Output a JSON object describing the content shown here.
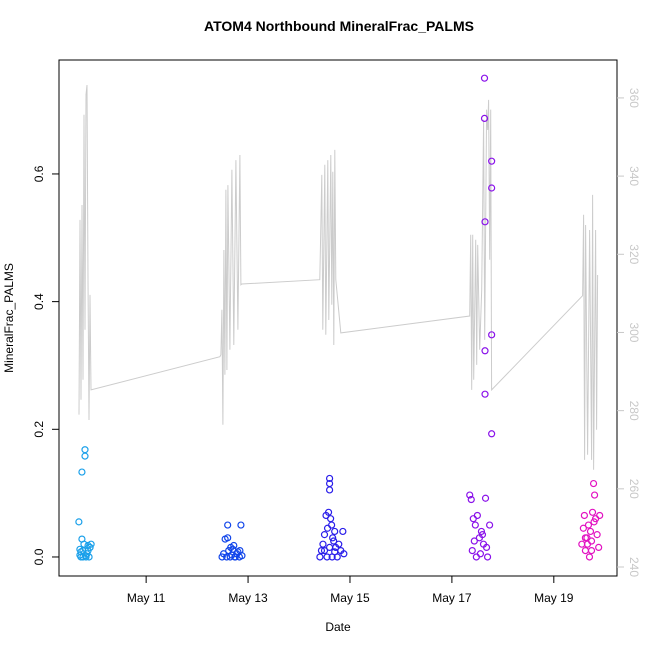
{
  "chart_data": {
    "type": "scatter",
    "title": "ATOM4 Northbound MineralFrac_PALMS",
    "x_label": "Date",
    "y_label": "MineralFrac_PALMS",
    "xlim": [
      9.29,
      20.24
    ],
    "xticks": [
      {
        "value": 11,
        "label": "May 11"
      },
      {
        "value": 13,
        "label": "May 13"
      },
      {
        "value": 15,
        "label": "May 15"
      },
      {
        "value": 17,
        "label": "May 17"
      },
      {
        "value": 19,
        "label": "May 19"
      }
    ],
    "ylim": [
      -0.0298,
      0.7785
    ],
    "yticks": [
      {
        "value": 0,
        "label": "0.0"
      },
      0.2,
      0.4,
      0.6
    ],
    "y2lim": [
      237.7,
      369.7
    ],
    "y2ticks": [
      240,
      260,
      280,
      300,
      320,
      340,
      360
    ],
    "y2_color": "#c8c8c8",
    "series": [
      {
        "type": "line",
        "axis": "y2",
        "color": "#cccccc",
        "x": [
          9.682,
          9.702,
          9.721,
          9.741,
          9.761,
          9.78,
          9.8,
          9.819,
          9.839,
          9.859,
          9.878,
          9.898,
          9.918,
          12.447,
          12.467,
          12.486,
          12.506,
          12.525,
          12.545,
          12.565,
          12.584,
          12.604,
          12.643,
          12.682,
          12.721,
          12.761,
          12.8,
          12.839,
          12.859,
          12.878,
          14.408,
          14.447,
          14.467,
          14.506,
          14.525,
          14.565,
          14.584,
          14.624,
          14.643,
          14.663,
          14.682,
          14.702,
          14.721,
          14.82,
          17.349,
          17.369,
          17.388,
          17.408,
          17.427,
          17.467,
          17.486,
          17.506,
          17.545,
          17.584,
          17.623,
          17.643,
          17.682,
          17.702,
          17.721,
          17.741,
          17.761,
          17.78,
          19.565,
          19.584,
          19.604,
          19.624,
          19.663,
          19.702,
          19.741,
          19.761,
          19.78,
          19.82,
          19.839,
          19.859
        ],
        "values": [
          279.0,
          328.8,
          282.8,
          332.6,
          287.9,
          355.7,
          300.7,
          360.8,
          363.3,
          313.5,
          277.6,
          309.6,
          285.3,
          293.8,
          294.3,
          305.8,
          276.4,
          321.1,
          289.2,
          336.5,
          290.4,
          337.7,
          295.6,
          341.6,
          296.8,
          344.1,
          300.7,
          345.4,
          312.2,
          312.4,
          313.5,
          340.3,
          300.7,
          342.9,
          299.4,
          344.1,
          303.2,
          345.4,
          307.1,
          341.1,
          296.8,
          346.7,
          313.5,
          299.9,
          304.2,
          325.0,
          285.3,
          325.0,
          287.9,
          323.7,
          291.7,
          322.4,
          295.6,
          310.9,
          354.4,
          298.1,
          357.0,
          351.8,
          359.5,
          318.6,
          357.0,
          285.3,
          309.4,
          330.1,
          267.4,
          327.5,
          268.7,
          326.2,
          267.4,
          335.2,
          264.9,
          326.2,
          275.1,
          314.7
        ]
      },
      {
        "type": "points",
        "color": "#1aa0ea",
        "x": [
          9.68,
          9.7,
          9.72,
          9.74,
          9.76,
          9.78,
          9.8,
          9.82,
          9.84,
          9.86,
          9.88,
          9.9,
          9.74,
          9.8,
          9.81,
          9.72,
          9.76,
          9.86,
          9.92,
          9.7
        ],
        "values": [
          0.055,
          0.003,
          0.0,
          0.133,
          0.01,
          0.02,
          0.168,
          0.0,
          0.005,
          0.018,
          0.0,
          0.015,
          0.028,
          0.158,
          0.002,
          0.008,
          0.0,
          0.01,
          0.02,
          0.012
        ]
      },
      {
        "type": "points",
        "color": "#1246ea",
        "x": [
          12.49,
          12.52,
          12.55,
          12.58,
          12.6,
          12.62,
          12.65,
          12.68,
          12.7,
          12.72,
          12.75,
          12.78,
          12.8,
          12.83,
          12.86,
          12.88,
          12.6,
          12.66,
          12.74,
          12.84
        ],
        "values": [
          0.0,
          0.005,
          0.028,
          0.0,
          0.05,
          0.01,
          0.0,
          0.003,
          0.012,
          0.018,
          0.0,
          0.005,
          0.008,
          0.0,
          0.05,
          0.002,
          0.03,
          0.015,
          0.0,
          0.01
        ]
      },
      {
        "type": "points",
        "color": "#2a1eea",
        "x": [
          14.41,
          14.44,
          14.47,
          14.5,
          14.53,
          14.56,
          14.58,
          14.6,
          14.6,
          14.6,
          14.62,
          14.64,
          14.66,
          14.68,
          14.7,
          14.72,
          14.75,
          14.78,
          14.82,
          14.86,
          14.88,
          14.55,
          14.65,
          14.5,
          14.7,
          14.6
        ],
        "values": [
          0.0,
          0.01,
          0.02,
          0.035,
          0.065,
          0.045,
          0.07,
          0.123,
          0.115,
          0.105,
          0.06,
          0.05,
          0.03,
          0.025,
          0.04,
          0.015,
          0.0,
          0.02,
          0.01,
          0.04,
          0.005,
          0.0,
          0.0,
          0.01,
          0.008,
          0.015
        ]
      },
      {
        "type": "points",
        "color": "#8a12ea",
        "x": [
          17.64,
          17.64,
          17.78,
          17.78,
          17.65,
          17.78,
          17.65,
          17.65,
          17.78,
          17.35,
          17.38,
          17.42,
          17.46,
          17.5,
          17.54,
          17.58,
          17.62,
          17.66,
          17.7,
          17.74,
          17.4,
          17.48,
          17.56,
          17.68,
          17.6,
          17.44
        ],
        "values": [
          0.75,
          0.687,
          0.62,
          0.578,
          0.525,
          0.348,
          0.323,
          0.255,
          0.193,
          0.097,
          0.09,
          0.06,
          0.05,
          0.065,
          0.03,
          0.04,
          0.02,
          0.092,
          0.0,
          0.05,
          0.01,
          0.0,
          0.005,
          0.015,
          0.035,
          0.025
        ]
      },
      {
        "type": "points",
        "color": "#e212c2",
        "x": [
          19.55,
          19.58,
          19.6,
          19.62,
          19.65,
          19.68,
          19.7,
          19.72,
          19.74,
          19.76,
          19.78,
          19.8,
          19.82,
          19.85,
          19.88,
          19.9,
          19.66,
          19.74,
          19.79,
          19.62
        ],
        "values": [
          0.02,
          0.045,
          0.065,
          0.01,
          0.03,
          0.05,
          0.0,
          0.04,
          0.025,
          0.07,
          0.115,
          0.097,
          0.06,
          0.035,
          0.015,
          0.065,
          0.02,
          0.01,
          0.055,
          0.03
        ]
      }
    ]
  }
}
